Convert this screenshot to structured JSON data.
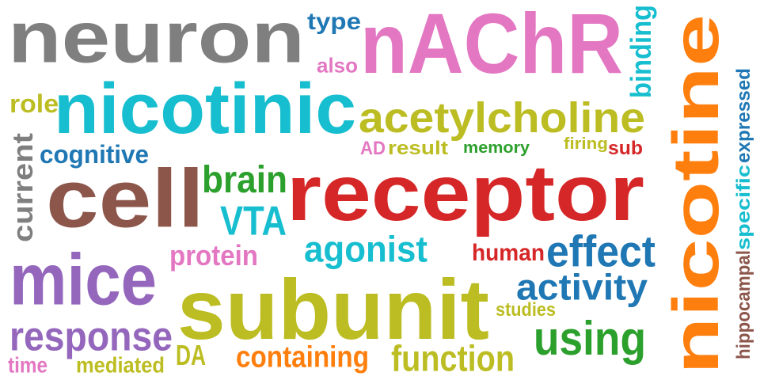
{
  "words": [
    {
      "text": "neuron",
      "color": "#7f7f7f"
    },
    {
      "text": "type",
      "color": "#1f77b4"
    },
    {
      "text": "nAChR",
      "color": "#e377c2"
    },
    {
      "text": "nicotine",
      "color": "#ff7f0e",
      "orientation": "vertical"
    },
    {
      "text": "binding",
      "color": "#17becf",
      "orientation": "vertical"
    },
    {
      "text": "also",
      "color": "#e377c2"
    },
    {
      "text": "nicotinic",
      "color": "#17becf"
    },
    {
      "text": "expressed",
      "color": "#1f77b4",
      "orientation": "vertical"
    },
    {
      "text": "role",
      "color": "#bcbd22"
    },
    {
      "text": "acetylcholine",
      "color": "#bcbd22"
    },
    {
      "text": "current",
      "color": "#7f7f7f",
      "orientation": "vertical"
    },
    {
      "text": "cognitive",
      "color": "#1f77b4"
    },
    {
      "text": "AD",
      "color": "#e377c2"
    },
    {
      "text": "result",
      "color": "#bcbd22"
    },
    {
      "text": "memory",
      "color": "#2ca02c"
    },
    {
      "text": "firing",
      "color": "#bcbd22"
    },
    {
      "text": "sub",
      "color": "#d62728"
    },
    {
      "text": "specific",
      "color": "#17becf",
      "orientation": "vertical"
    },
    {
      "text": "cell",
      "color": "#8c564b"
    },
    {
      "text": "brain",
      "color": "#2ca02c"
    },
    {
      "text": "receptor",
      "color": "#d62728"
    },
    {
      "text": "VTA",
      "color": "#17becf"
    },
    {
      "text": "hippocampal",
      "color": "#8c564b",
      "orientation": "vertical"
    },
    {
      "text": "agonist",
      "color": "#17becf"
    },
    {
      "text": "mice",
      "color": "#9467bd"
    },
    {
      "text": "protein",
      "color": "#e377c2"
    },
    {
      "text": "human",
      "color": "#d62728"
    },
    {
      "text": "effect",
      "color": "#1f77b4"
    },
    {
      "text": "subunit",
      "color": "#bcbd22"
    },
    {
      "text": "activity",
      "color": "#1f77b4"
    },
    {
      "text": "studies",
      "color": "#bcbd22"
    },
    {
      "text": "response",
      "color": "#9467bd"
    },
    {
      "text": "using",
      "color": "#2ca02c"
    },
    {
      "text": "DA",
      "color": "#bcbd22"
    },
    {
      "text": "containing",
      "color": "#ff7f0e"
    },
    {
      "text": "function",
      "color": "#bcbd22"
    },
    {
      "text": "time",
      "color": "#e377c2"
    },
    {
      "text": "mediated",
      "color": "#bcbd22"
    }
  ]
}
